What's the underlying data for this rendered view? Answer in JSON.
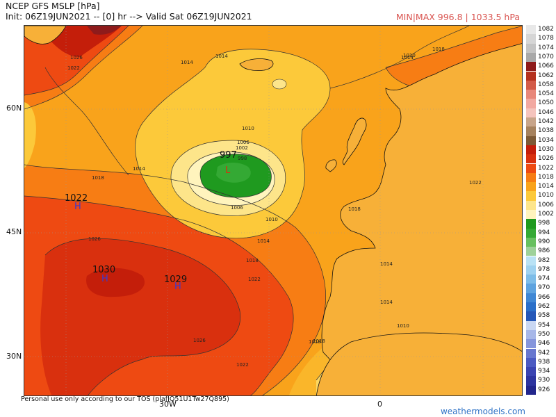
{
  "header": {
    "title": "NCEP GFS MSLP [hPa]",
    "subtitle": "Init: 06Z19JUN2021 -- [0] hr --> Valid Sat 06Z19JUN2021",
    "minmax": "MIN|MAX 996.8 | 1033.5 hPa"
  },
  "axes": {
    "lat_labels": [
      "60N",
      "45N",
      "30N"
    ],
    "lon_labels": [
      "30W",
      "0"
    ]
  },
  "centers": [
    {
      "type": "L",
      "value": "997"
    },
    {
      "type": "H",
      "value": "1022"
    },
    {
      "type": "H",
      "value": "1030"
    },
    {
      "type": "H",
      "value": "1029"
    }
  ],
  "contour_labels": [
    "1026",
    "1022",
    "1014",
    "1018",
    "1014",
    "1010",
    "1006",
    "1002",
    "998",
    "1006",
    "1010",
    "1014",
    "1018",
    "1026",
    "1022",
    "1018",
    "1014",
    "1010",
    "1018",
    "1014",
    "1026",
    "1022",
    "1018",
    "1022",
    "1014",
    "1014",
    "1010",
    "1018"
  ],
  "legend": {
    "levels": [
      "1082",
      "1078",
      "1074",
      "1070",
      "1066",
      "1062",
      "1058",
      "1054",
      "1050",
      "1046",
      "1042",
      "1038",
      "1034",
      "1030",
      "1026",
      "1022",
      "1018",
      "1014",
      "1010",
      "1006",
      "1002",
      "998",
      "994",
      "990",
      "986",
      "982",
      "978",
      "974",
      "970",
      "966",
      "962",
      "958",
      "954",
      "950",
      "946",
      "942",
      "938",
      "934",
      "930",
      "926"
    ],
    "colors": [
      "#e8e8e8",
      "#d6d6d6",
      "#c4c4c4",
      "#a9a9a9",
      "#8e1b1b",
      "#b5311f",
      "#d35b49",
      "#e8877a",
      "#f2a9a1",
      "#f5c4bd",
      "#c8a58a",
      "#a6825e",
      "#7d5a36",
      "#c41e0a",
      "#d9300e",
      "#ee4a12",
      "#f77d14",
      "#f9a31b",
      "#fcc93a",
      "#fde58a",
      "#fff4bd",
      "#1f9a1f",
      "#34a934",
      "#67c05f",
      "#9ed19a",
      "#b9e2f5",
      "#9fd2f0",
      "#7ebde8",
      "#5ea3df",
      "#3f87d4",
      "#2a6fc9",
      "#2457b8",
      "#c9d7f2",
      "#a7b7e8",
      "#8696dc",
      "#6777cf",
      "#4b5ac2",
      "#3a44b2",
      "#2d34a0",
      "#22268c"
    ]
  },
  "footer": {
    "notice": "Personal use only according to our TOS (plafJQ51U1Tw27Q895)",
    "site": "weathermodels.com"
  }
}
